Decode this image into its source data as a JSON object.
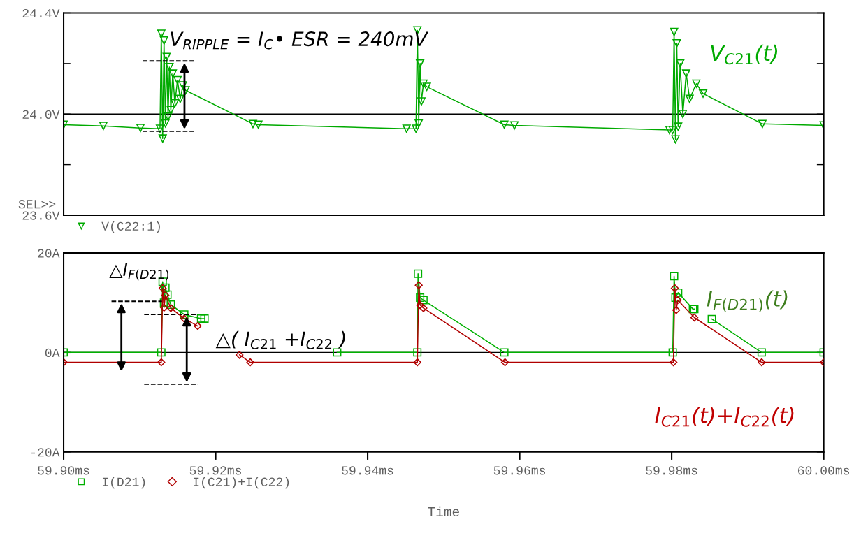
{
  "chart_data": [
    {
      "type": "line",
      "xlim": [
        59.9,
        60.0
      ],
      "ylim": [
        23.6,
        24.4
      ],
      "tick_labels": "y",
      "yticks": [
        {
          "value": 24.4,
          "label": "24.4V"
        },
        {
          "value": 24.2,
          "label": null
        },
        {
          "value": 24.0,
          "label": "24.0V"
        },
        {
          "value": 23.8,
          "label": null
        },
        {
          "value": 23.6,
          "label": "23.6V"
        }
      ],
      "grid": false,
      "legend": "bottom left",
      "ref_lines": [
        {
          "axis": "y",
          "value": 24.0,
          "color": "#000000"
        }
      ],
      "series": [
        {
          "name": "V(C22:1)",
          "color": "#00aa00",
          "marker": "triangle",
          "x": [
            59.9,
            59.90523,
            59.91011,
            59.91268,
            59.91285,
            59.91303,
            59.91321,
            59.91339,
            59.91356,
            59.91374,
            59.91392,
            59.9141,
            59.91436,
            59.91463,
            59.91498,
            59.91534,
            59.91569,
            59.91605,
            59.92491,
            59.92562,
            59.94512,
            59.94636,
            59.94654,
            59.94672,
            59.9469,
            59.94707,
            59.94734,
            59.94778,
            59.95798,
            59.95931,
            59.9797,
            59.98014,
            59.98032,
            59.9805,
            59.98067,
            59.98085,
            59.98112,
            59.98147,
            59.98191,
            59.98236,
            59.98324,
            59.98413,
            59.99193,
            60.0
          ],
          "values": [
            23.958,
            23.953,
            23.945,
            23.942,
            24.318,
            23.903,
            24.291,
            23.963,
            24.226,
            23.99,
            24.186,
            24.016,
            24.16,
            24.042,
            24.134,
            24.06,
            24.113,
            24.094,
            23.961,
            23.958,
            23.942,
            23.942,
            24.331,
            23.963,
            24.2,
            24.05,
            24.12,
            24.108,
            23.958,
            23.955,
            23.937,
            23.937,
            24.325,
            23.9,
            24.28,
            23.95,
            24.2,
            24.0,
            24.16,
            24.06,
            24.12,
            24.081,
            23.961,
            23.955
          ]
        }
      ],
      "annotations": [
        "V$_{RIPPLE}$ = I$_{C}$• ESR = 240mV",
        "V$_{C21}$(t)",
        "SEL>>"
      ]
    },
    {
      "type": "line",
      "xlim": [
        59.9,
        60.0
      ],
      "ylim": [
        -20,
        20
      ],
      "xlabel": "Time",
      "xticks": [
        {
          "value": 59.9,
          "label": "59.90ms"
        },
        {
          "value": 59.92,
          "label": "59.92ms"
        },
        {
          "value": 59.94,
          "label": "59.94ms"
        },
        {
          "value": 59.96,
          "label": "59.96ms"
        },
        {
          "value": 59.98,
          "label": "59.98ms"
        },
        {
          "value": 60.0,
          "label": "60.00ms"
        }
      ],
      "yticks": [
        {
          "value": 20,
          "label": "20A"
        },
        {
          "value": 0,
          "label": "0A"
        },
        {
          "value": -20,
          "label": "-20A"
        }
      ],
      "grid": false,
      "legend": "bottom left",
      "ref_lines": [
        {
          "axis": "y",
          "value": 0,
          "color": "#000000"
        }
      ],
      "series": [
        {
          "name": "I(D21)",
          "color": "#00b000",
          "marker": "square",
          "x": [
            59.9,
            59.91285,
            59.91303,
            59.91321,
            59.91339,
            59.91365,
            59.9141,
            59.91587,
            59.91809,
            59.91853,
            59.92,
            59.93599,
            59.94654,
            59.94663,
            59.9469,
            59.94734,
            59.95798,
            59.98014,
            59.98032,
            59.9805,
            59.98085,
            59.9828,
            59.98298,
            59.984,
            59.98528,
            59.99184,
            60.0
          ],
          "values": [
            0,
            0,
            14.2,
            10.0,
            13.0,
            11.6,
            9.6,
            7.6,
            6.8,
            6.8,
            null,
            0,
            0,
            15.8,
            11.0,
            10.5,
            0,
            0,
            15.3,
            11.0,
            12.0,
            8.7,
            8.7,
            null,
            6.7,
            0,
            0
          ]
        },
        {
          "name": "I(C21)+I(C22)",
          "color": "#b00000",
          "marker": "diamond",
          "x": [
            59.9,
            59.91285,
            59.91303,
            59.91321,
            59.91339,
            59.9141,
            59.91587,
            59.91764,
            59.92,
            59.92314,
            59.92456,
            59.94654,
            59.94672,
            59.9469,
            59.94734,
            59.95807,
            59.98023,
            59.98041,
            59.9806,
            59.9808,
            59.98298,
            59.99184,
            60.0
          ],
          "values": [
            -2.0,
            -2.0,
            12.9,
            9.0,
            11.5,
            8.9,
            6.8,
            5.3,
            null,
            -0.5,
            -2.0,
            -2.0,
            13.5,
            9.5,
            8.9,
            -2.0,
            -2.0,
            12.9,
            8.5,
            10.5,
            7.0,
            -2.0,
            -2.0
          ]
        }
      ],
      "annotations": [
        "△I$_{F(D21)}$",
        "△( I$_{C21}$ +I$_{C22}$ )",
        "I$_{F(D21)}$(t)",
        "I$_{C21}$(t)+I$_{C22}$(t)"
      ]
    }
  ]
}
